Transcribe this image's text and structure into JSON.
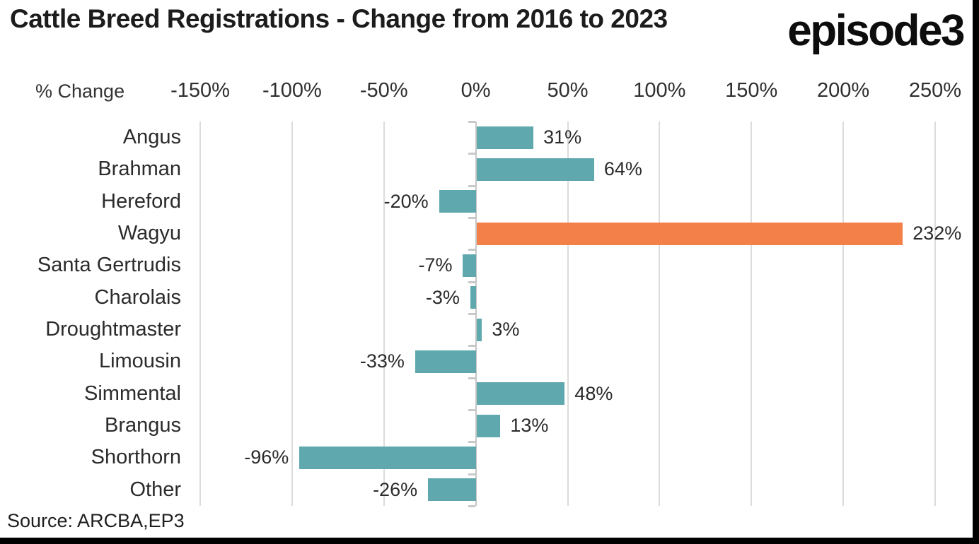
{
  "header": {
    "title": "Cattle Breed Registrations - Change from 2016 to 2023",
    "logo": "episode3"
  },
  "chart_data": {
    "type": "bar",
    "orientation": "horizontal",
    "title": "Cattle Breed Registrations - Change from 2016 to 2023",
    "axis_label": "% Change",
    "categories": [
      "Angus",
      "Brahman",
      "Hereford",
      "Wagyu",
      "Santa Gertrudis",
      "Charolais",
      "Droughtmaster",
      "Limousin",
      "Simmental",
      "Brangus",
      "Shorthorn",
      "Other"
    ],
    "values": [
      31,
      64,
      -20,
      232,
      -7,
      -3,
      3,
      -33,
      48,
      13,
      -96,
      -26
    ],
    "value_labels": [
      "31%",
      "64%",
      "-20%",
      "232%",
      "-7%",
      "-3%",
      "3%",
      "-33%",
      "48%",
      "13%",
      "-96%",
      "-26%"
    ],
    "highlight_index": 3,
    "x_ticks": [
      "-150%",
      "-100%",
      "-50%",
      "0%",
      "50%",
      "100%",
      "150%",
      "200%",
      "250%"
    ],
    "x_tick_values": [
      -150,
      -100,
      -50,
      0,
      50,
      100,
      150,
      200,
      250
    ],
    "xlim": [
      -150,
      250
    ],
    "grid": true,
    "bar_color": "#5fa8ae",
    "highlight_color": "#f28048",
    "gridline_color": "#dcdcdc",
    "zero_axis_color": "#c6c6c6"
  },
  "footer": {
    "source": "Source: ARCBA,EP3"
  }
}
